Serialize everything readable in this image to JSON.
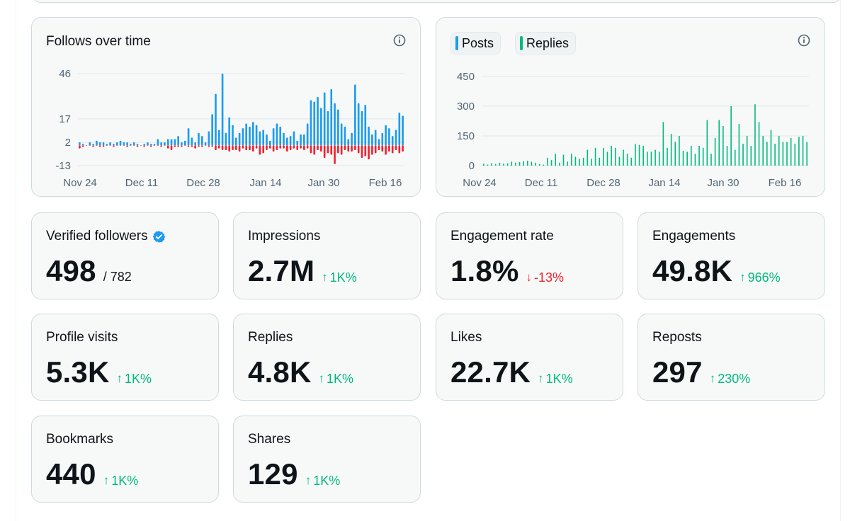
{
  "colors": {
    "posts": "#1d9bf0",
    "follows_gain": "#1d9bf0",
    "follows_loss": "#f4212e",
    "replies": "#00ba7c",
    "up": "#00ba7c",
    "down": "#f4212e",
    "verified_badge": "#1d9bf0"
  },
  "follows_chart": {
    "title": "Follows over time",
    "info_icon": "info-icon",
    "chart_data": {
      "type": "bar",
      "title": "Follows over time",
      "x_tick_labels": [
        "Nov 24",
        "Dec 11",
        "Dec 28",
        "Jan 14",
        "Jan 30",
        "Feb 16"
      ],
      "y_tick_labels": [
        "46",
        "17",
        "2",
        "-13"
      ],
      "ylim": [
        -13,
        46
      ],
      "grid": true,
      "series": [
        {
          "values": [
            2,
            1,
            0,
            2,
            1,
            3,
            2,
            2,
            1,
            2,
            1,
            2,
            3,
            2,
            2,
            1,
            2,
            1,
            0,
            1,
            2,
            1,
            1,
            4,
            2,
            2,
            4,
            4,
            4,
            6,
            2,
            3,
            11,
            5,
            2,
            8,
            6,
            2,
            9,
            20,
            33,
            10,
            46,
            8,
            18,
            13,
            5,
            8,
            11,
            14,
            12,
            15,
            13,
            9,
            10,
            7,
            3,
            11,
            14,
            12,
            8,
            5,
            6,
            9,
            3,
            7,
            7,
            14,
            29,
            28,
            31,
            24,
            34,
            22,
            36,
            27,
            23,
            14,
            12,
            4,
            8,
            39,
            27,
            22,
            26,
            12,
            7,
            10,
            4,
            8,
            13,
            11,
            6,
            10,
            21,
            19
          ]
        },
        {
          "values": [
            -2,
            -1,
            0,
            0,
            -1,
            0,
            -1,
            -1,
            0,
            0,
            -1,
            0,
            0,
            0,
            -1,
            0,
            0,
            -1,
            0,
            -1,
            0,
            -1,
            0,
            0,
            -1,
            0,
            -2,
            -3,
            -1,
            -1,
            -1,
            0,
            -1,
            -1,
            -2,
            -1,
            -1,
            0,
            -1,
            -1,
            -3,
            -2,
            -3,
            -3,
            -4,
            -3,
            -3,
            -4,
            -2,
            -3,
            -3,
            -4,
            -2,
            -6,
            -5,
            -3,
            -2,
            -4,
            -3,
            -2,
            -2,
            -4,
            -3,
            -2,
            -3,
            -2,
            -3,
            -2,
            -5,
            -6,
            -3,
            -4,
            -8,
            -5,
            -6,
            -12,
            -5,
            -6,
            -3,
            -4,
            -4,
            -3,
            -5,
            -8,
            -7,
            -9,
            -6,
            -5,
            -3,
            -4,
            -6,
            -4,
            -5,
            -3,
            -5,
            -4
          ]
        }
      ]
    }
  },
  "posts_chart": {
    "legend": [
      {
        "label": "Posts",
        "color_key": "posts"
      },
      {
        "label": "Replies",
        "color_key": "replies"
      }
    ],
    "info_icon": "info-icon",
    "chart_data": {
      "type": "bar",
      "x_tick_labels": [
        "Nov 24",
        "Dec 11",
        "Dec 28",
        "Jan 14",
        "Jan 30",
        "Feb 16"
      ],
      "y_tick_labels": [
        "450",
        "300",
        "150",
        "0"
      ],
      "ylim": [
        0,
        450
      ],
      "grid": true,
      "series": [
        {
          "name": "Replies",
          "values": [
            10,
            5,
            12,
            8,
            15,
            10,
            12,
            20,
            15,
            18,
            22,
            25,
            20,
            15,
            8,
            5,
            40,
            28,
            60,
            15,
            55,
            20,
            60,
            45,
            35,
            40,
            80,
            35,
            90,
            40,
            90,
            70,
            100,
            90,
            45,
            80,
            60,
            40,
            110,
            105,
            100,
            70,
            70,
            80,
            70,
            220,
            90,
            160,
            120,
            150,
            75,
            70,
            100,
            60,
            100,
            90,
            230,
            60,
            140,
            230,
            200,
            100,
            300,
            80,
            210,
            110,
            150,
            100,
            310,
            220,
            150,
            120,
            180,
            110,
            150,
            120,
            120,
            140,
            110,
            145,
            150,
            120
          ]
        }
      ]
    }
  },
  "stats": [
    {
      "label": "Verified followers",
      "value": "498",
      "sub": "/ 782",
      "badge": "verified-badge-icon"
    },
    {
      "label": "Impressions",
      "value": "2.7M",
      "delta": "1K%",
      "direction": "up"
    },
    {
      "label": "Engagement rate",
      "value": "1.8%",
      "delta": "-13%",
      "direction": "down"
    },
    {
      "label": "Engagements",
      "value": "49.8K",
      "delta": "966%",
      "direction": "up"
    },
    {
      "label": "Profile visits",
      "value": "5.3K",
      "delta": "1K%",
      "direction": "up"
    },
    {
      "label": "Replies",
      "value": "4.8K",
      "delta": "1K%",
      "direction": "up"
    },
    {
      "label": "Likes",
      "value": "22.7K",
      "delta": "1K%",
      "direction": "up"
    },
    {
      "label": "Reposts",
      "value": "297",
      "delta": "230%",
      "direction": "up"
    },
    {
      "label": "Bookmarks",
      "value": "440",
      "delta": "1K%",
      "direction": "up"
    },
    {
      "label": "Shares",
      "value": "129",
      "delta": "1K%",
      "direction": "up"
    }
  ]
}
